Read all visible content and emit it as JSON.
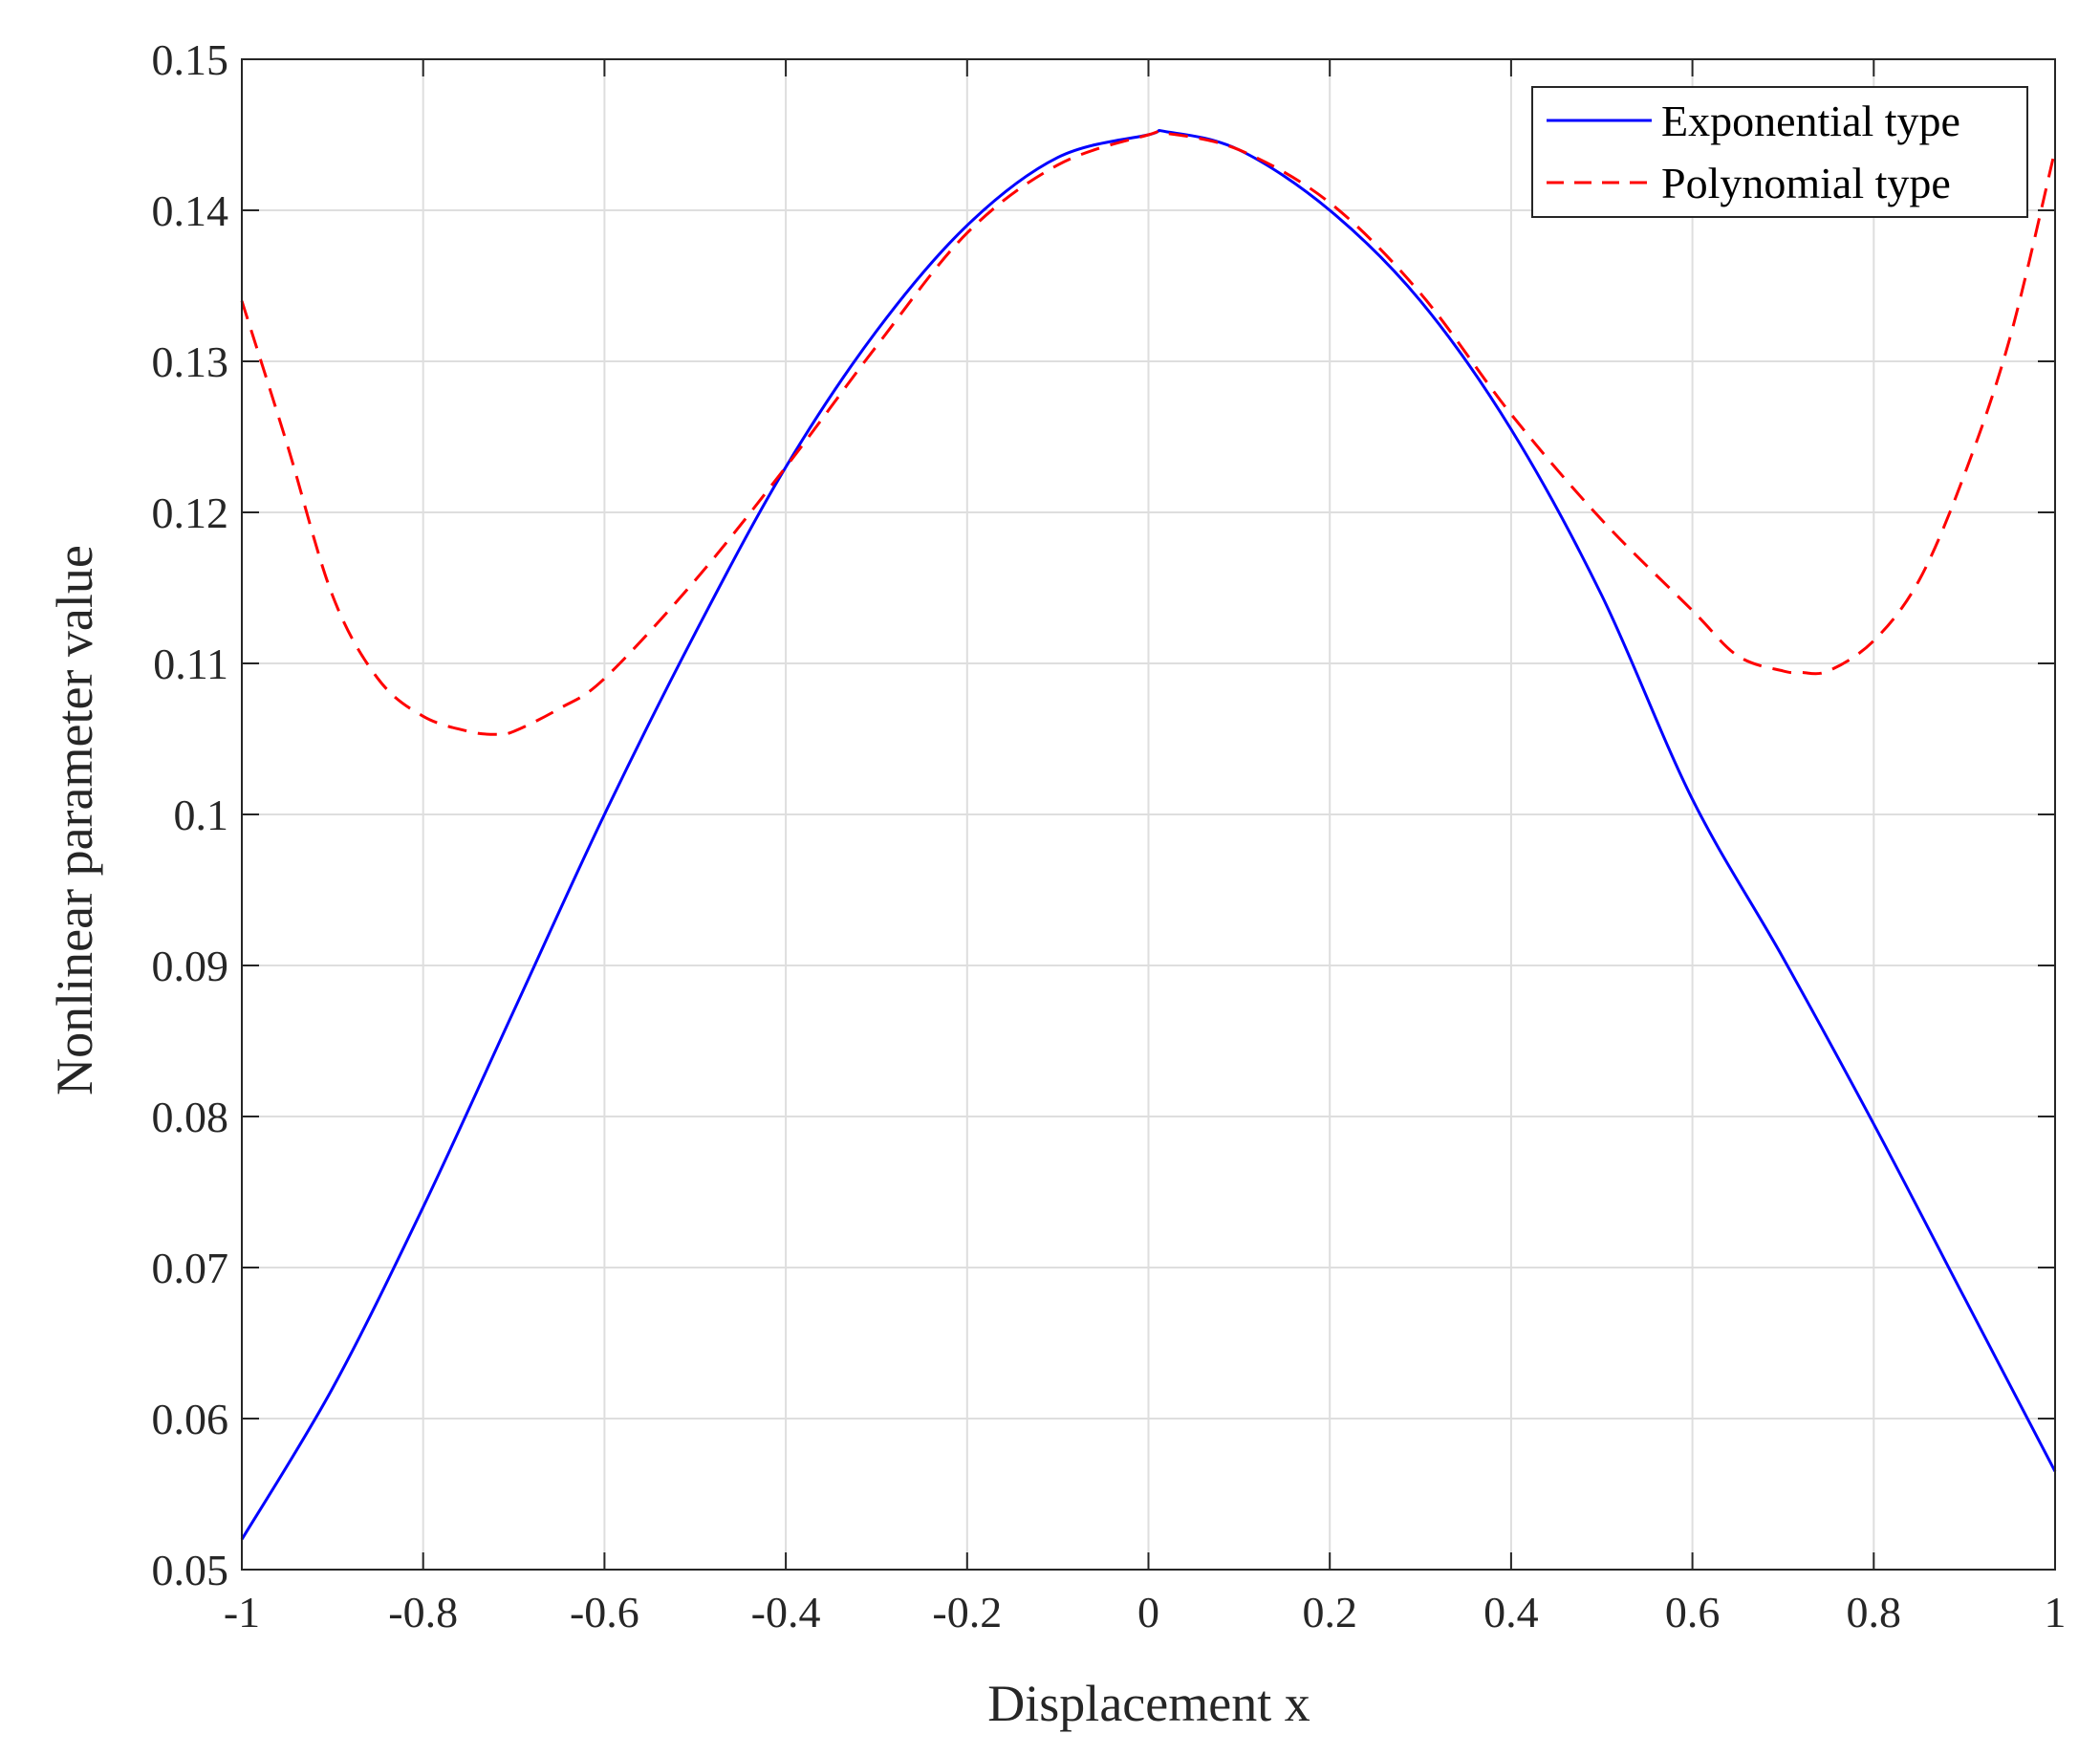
{
  "chart_data": {
    "type": "line",
    "title": "",
    "xlabel": "Displacement x",
    "ylabel": "Nonlinear parameter value",
    "xlim": [
      -1,
      1
    ],
    "ylim": [
      0.05,
      0.15
    ],
    "x_ticks": [
      -1,
      -0.8,
      -0.6,
      -0.4,
      -0.2,
      0,
      0.2,
      0.4,
      0.6,
      0.8,
      1
    ],
    "x_tick_labels": [
      "-1",
      "-0.8",
      "-0.6",
      "-0.4",
      "-0.2",
      "0",
      "0.2",
      "0.4",
      "0.6",
      "0.8",
      "1"
    ],
    "y_ticks": [
      0.05,
      0.06,
      0.07,
      0.08,
      0.09,
      0.1,
      0.11,
      0.12,
      0.13,
      0.14,
      0.15
    ],
    "y_tick_labels": [
      "0.05",
      "0.06",
      "0.07",
      "0.08",
      "0.09",
      "0.1",
      "0.11",
      "0.12",
      "0.13",
      "0.14",
      "0.15"
    ],
    "grid": true,
    "legend_position": "top-right",
    "series": [
      {
        "name": "Exponential type",
        "color": "#0000ff",
        "style": "solid",
        "x": [
          -1,
          -0.9,
          -0.8,
          -0.7,
          -0.6,
          -0.5,
          -0.4,
          -0.3,
          -0.2,
          -0.1,
          0,
          0.02,
          0.1,
          0.2,
          0.3,
          0.4,
          0.5,
          0.6,
          0.7,
          0.8,
          0.9,
          1
        ],
        "y": [
          0.052,
          0.062,
          0.074,
          0.087,
          0.1,
          0.112,
          0.123,
          0.132,
          0.139,
          0.1435,
          0.145,
          0.1452,
          0.144,
          0.14,
          0.134,
          0.1255,
          0.1145,
          0.101,
          0.0905,
          0.0795,
          0.068,
          0.0565
        ]
      },
      {
        "name": "Polynomial type",
        "color": "#ff0000",
        "style": "dashed",
        "x": [
          -1,
          -0.95,
          -0.9,
          -0.85,
          -0.8,
          -0.75,
          -0.72,
          -0.7,
          -0.65,
          -0.6,
          -0.5,
          -0.4,
          -0.3,
          -0.2,
          -0.1,
          0,
          0.02,
          0.1,
          0.2,
          0.3,
          0.4,
          0.5,
          0.6,
          0.65,
          0.7,
          0.72,
          0.75,
          0.8,
          0.85,
          0.9,
          0.95,
          1
        ],
        "y": [
          0.134,
          0.1245,
          0.1145,
          0.109,
          0.1065,
          0.1055,
          0.1053,
          0.1055,
          0.107,
          0.109,
          0.1155,
          0.123,
          0.131,
          0.1385,
          0.143,
          0.145,
          0.1451,
          0.144,
          0.1405,
          0.1345,
          0.1265,
          0.1195,
          0.1135,
          0.1105,
          0.1095,
          0.1094,
          0.1095,
          0.1115,
          0.1155,
          0.1225,
          0.1315,
          0.144
        ]
      }
    ]
  }
}
